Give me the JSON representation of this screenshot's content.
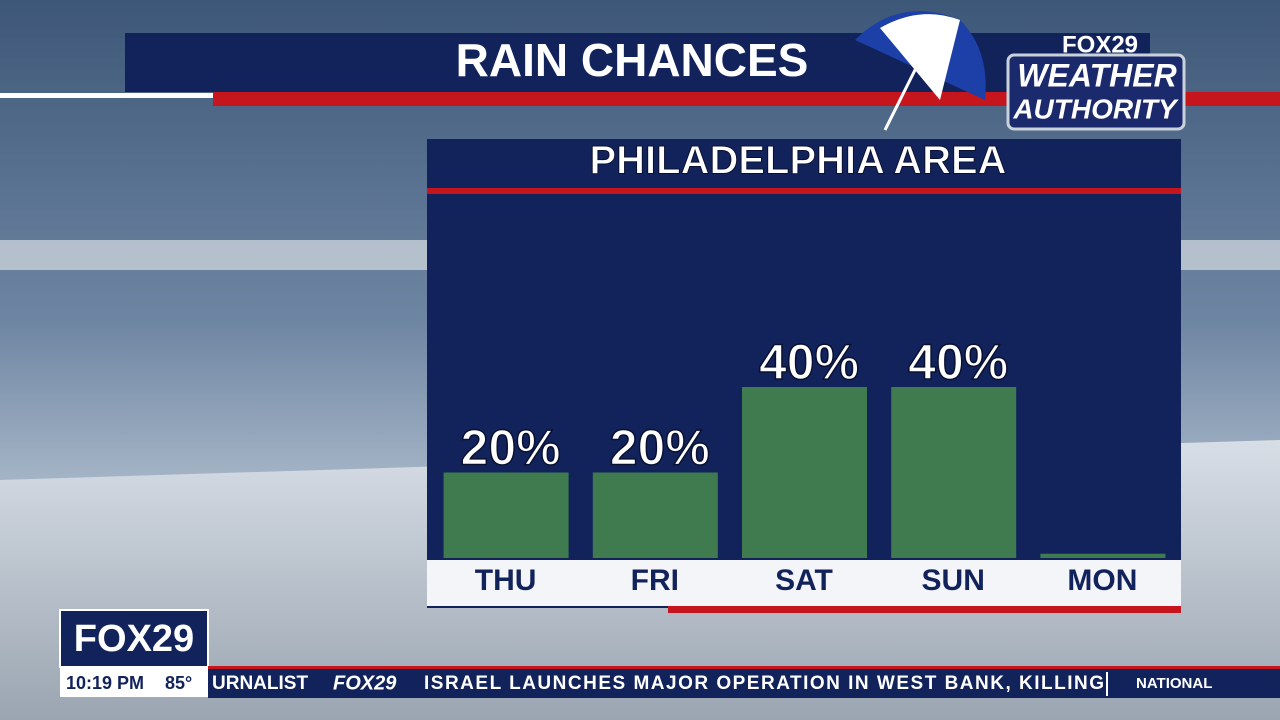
{
  "chart_data": {
    "type": "bar",
    "title": "RAIN CHANCES",
    "subtitle": "PHILADELPHIA AREA",
    "categories": [
      "THU",
      "FRI",
      "SAT",
      "SUN",
      "MON"
    ],
    "values": [
      20,
      20,
      40,
      40,
      1
    ],
    "value_labels": [
      "20%",
      "20%",
      "40%",
      "40%",
      null
    ],
    "color": "#3f7b4f"
  },
  "logo": {
    "brand": "FOX29",
    "line1": "WEATHER",
    "line2": "AUTHORITY"
  },
  "footer": {
    "brand": "FOX29",
    "time": "10:19 PM",
    "temperature": "85°"
  },
  "ticker": {
    "left": "URNALIST",
    "brand": "FOX29",
    "headline": "ISRAEL LAUNCHES MAJOR OPERATION IN WEST BANK, KILLING",
    "section": "NATIONAL"
  }
}
